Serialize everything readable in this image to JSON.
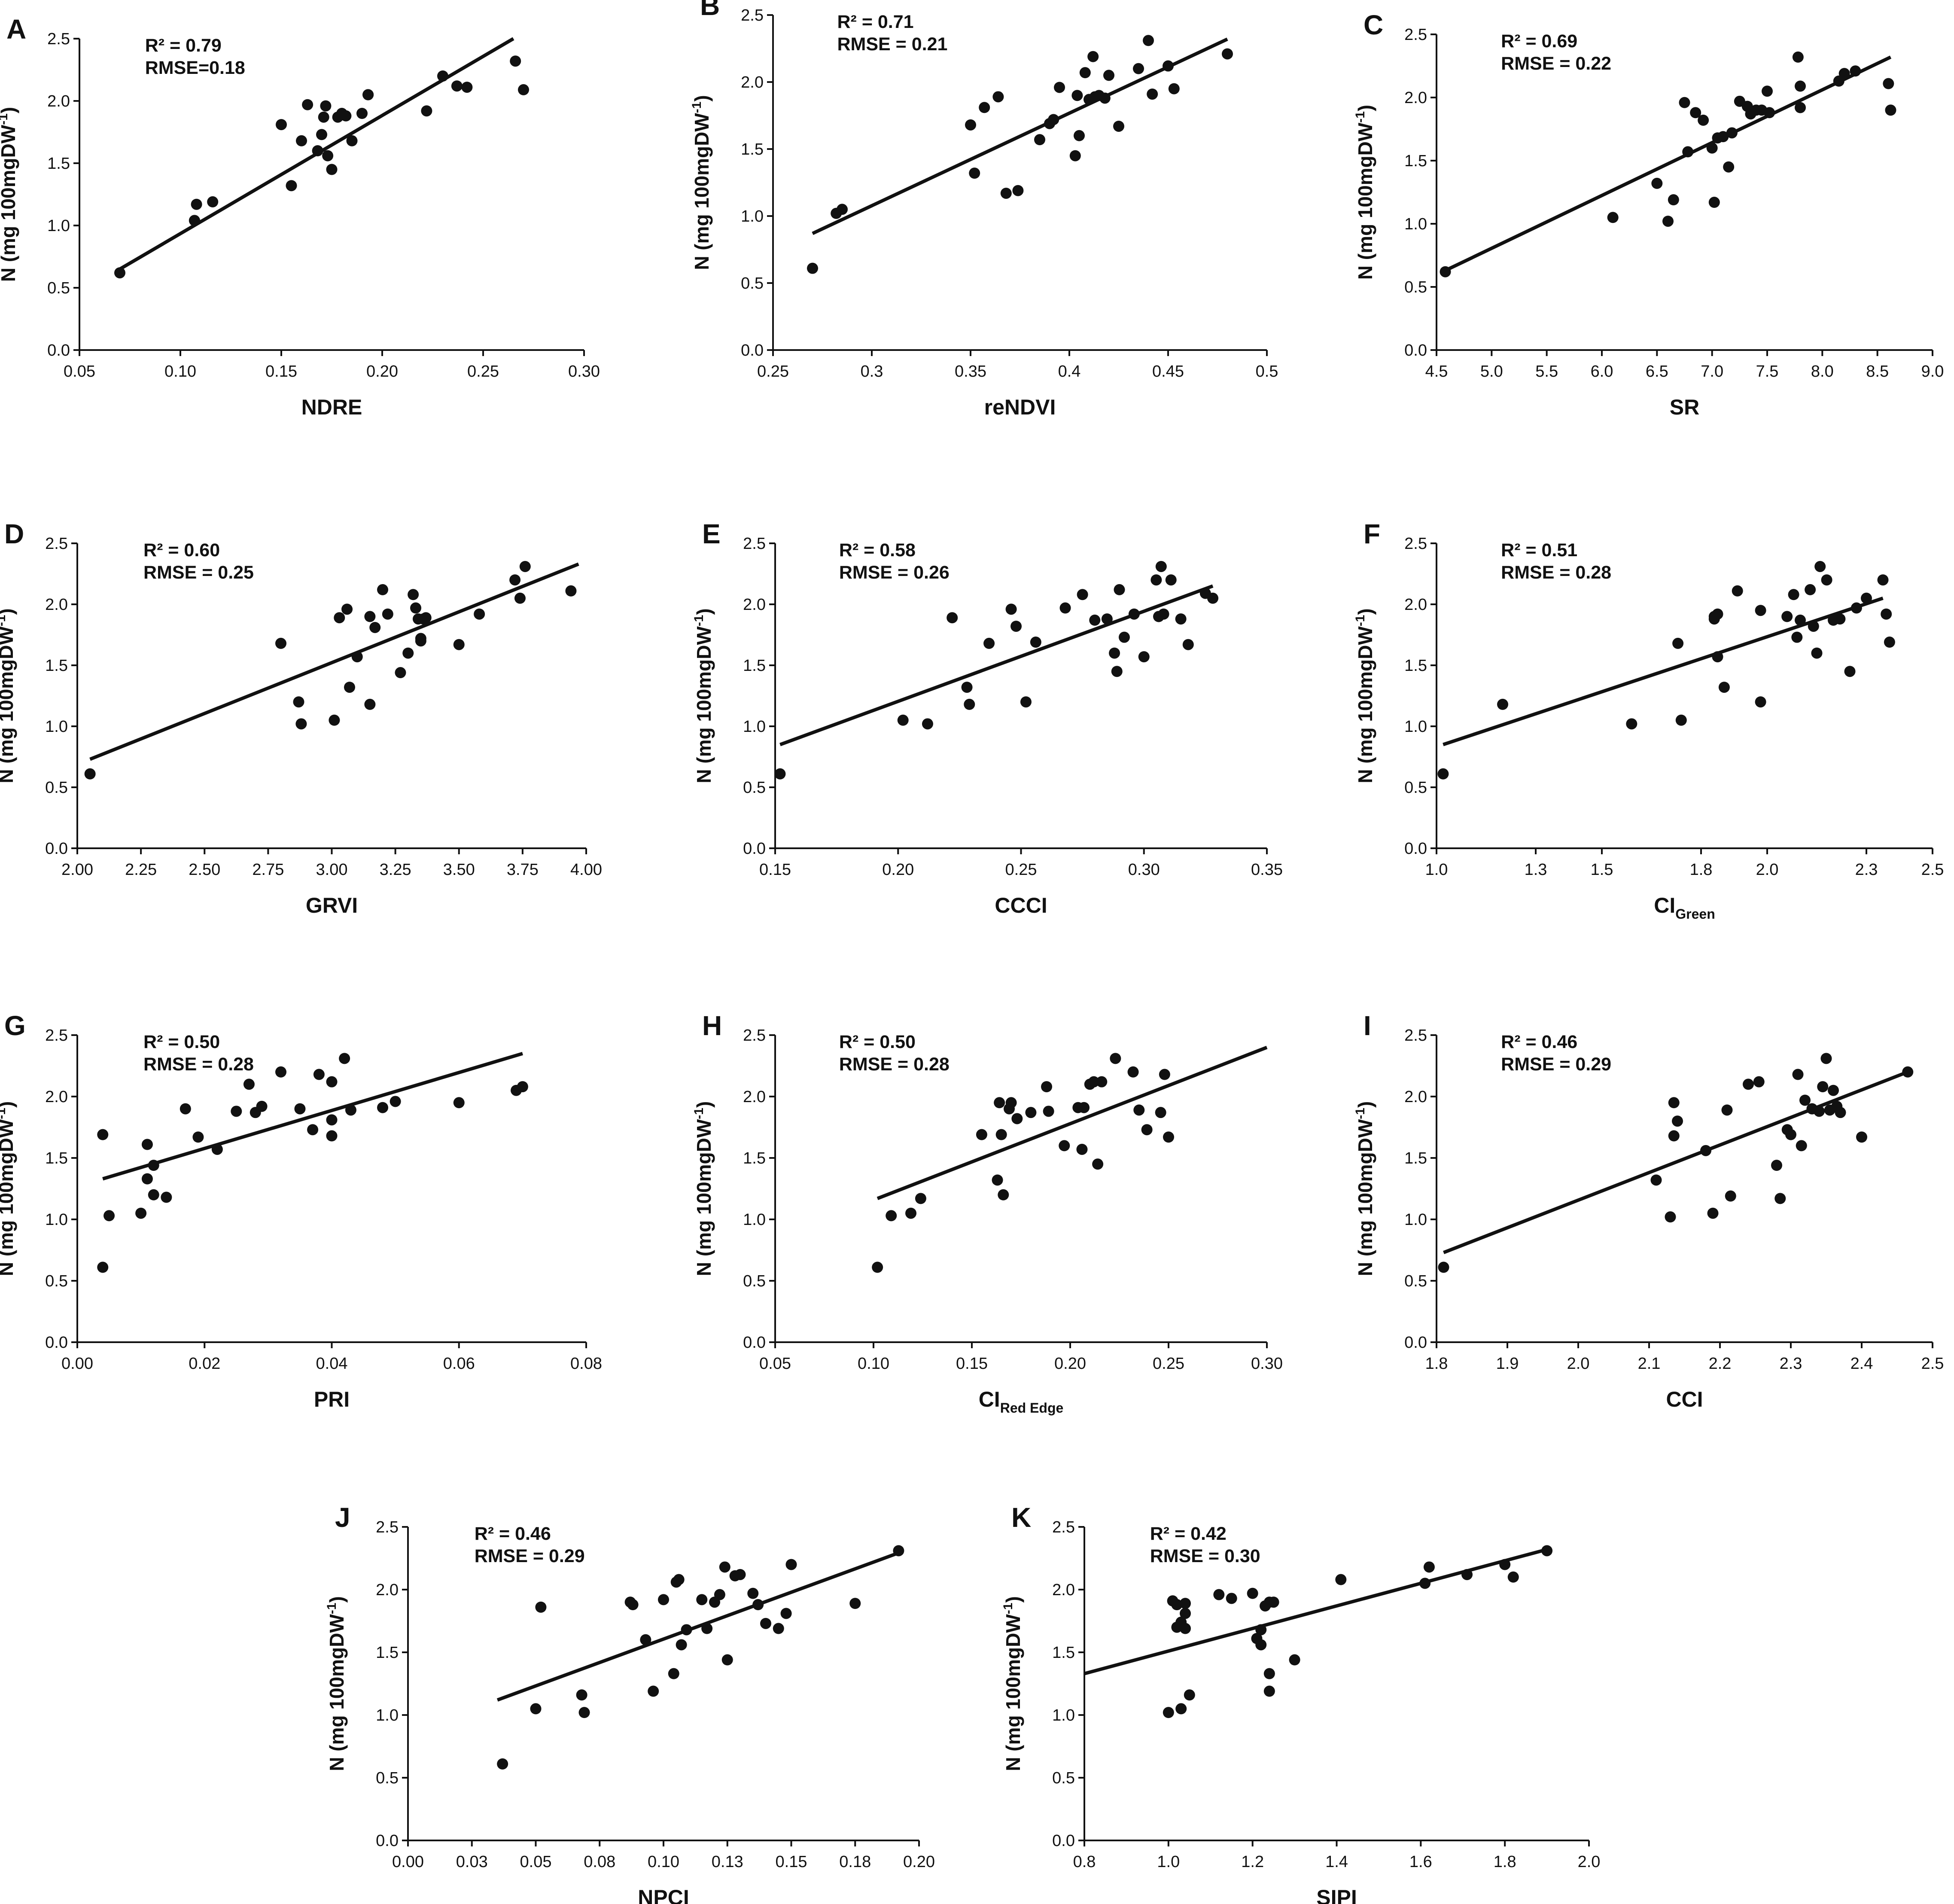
{
  "figure": {
    "y_label_main": "N (mg 100mgDW",
    "y_label_sup": "-1",
    "y_label_close": ")"
  },
  "chart_data": [
    {
      "panel": "A",
      "type": "scatter",
      "xlabel": "NDRE",
      "r2": "R² = 0.79",
      "rmse": "RMSE=0.18",
      "xlim": [
        0.05,
        0.3
      ],
      "xticks": [
        0.05,
        0.1,
        0.15,
        0.2,
        0.25,
        0.3
      ],
      "xtick_labels": [
        "0.05",
        "0.10",
        "0.15",
        "0.20",
        "0.25",
        "0.30"
      ],
      "ylim": [
        0,
        2.5
      ],
      "yticks": [
        0,
        0.5,
        1.0,
        1.5,
        2.0,
        2.5
      ],
      "ytick_labels": [
        "0.0",
        "0.5",
        "1.0",
        "1.5",
        "2.0",
        "2.5"
      ],
      "fit": [
        [
          0.07,
          0.65
        ],
        [
          0.265,
          2.5
        ]
      ],
      "x": [
        0.07,
        0.107,
        0.108,
        0.107,
        0.116,
        0.15,
        0.155,
        0.16,
        0.163,
        0.168,
        0.17,
        0.171,
        0.172,
        0.173,
        0.175,
        0.178,
        0.18,
        0.182,
        0.185,
        0.19,
        0.193,
        0.193,
        0.222,
        0.23,
        0.237,
        0.242,
        0.266,
        0.27
      ],
      "y": [
        0.62,
        1.04,
        1.17,
        1.04,
        1.19,
        1.81,
        1.32,
        1.68,
        1.97,
        1.6,
        1.73,
        1.87,
        1.96,
        1.56,
        1.45,
        1.87,
        1.9,
        1.88,
        1.68,
        1.9,
        2.05,
        2.05,
        1.92,
        2.2,
        2.12,
        2.11,
        2.32,
        2.09
      ]
    },
    {
      "panel": "B",
      "type": "scatter",
      "xlabel": "reNDVI",
      "r2": "R² = 0.71",
      "rmse": "RMSE = 0.21",
      "xlim": [
        0.25,
        0.5
      ],
      "xticks": [
        0.25,
        0.3,
        0.35,
        0.4,
        0.45,
        0.5
      ],
      "xtick_labels": [
        "0.25",
        "0.3",
        "0.35",
        "0.4",
        "0.45",
        "0.5"
      ],
      "ylim": [
        0,
        2.5
      ],
      "yticks": [
        0,
        0.5,
        1.0,
        1.5,
        2.0,
        2.5
      ],
      "ytick_labels": [
        "0.0",
        "0.5",
        "1.0",
        "1.5",
        "2.0",
        "2.5"
      ],
      "fit": [
        [
          0.27,
          0.87
        ],
        [
          0.48,
          2.32
        ]
      ],
      "x": [
        0.27,
        0.282,
        0.285,
        0.35,
        0.352,
        0.357,
        0.364,
        0.368,
        0.374,
        0.385,
        0.39,
        0.392,
        0.395,
        0.403,
        0.405,
        0.408,
        0.41,
        0.412,
        0.413,
        0.415,
        0.418,
        0.42,
        0.425,
        0.435,
        0.44,
        0.442,
        0.45,
        0.453,
        0.48,
        0.404
      ],
      "y": [
        0.61,
        1.02,
        1.05,
        1.68,
        1.32,
        1.81,
        1.89,
        1.17,
        1.19,
        1.57,
        1.69,
        1.72,
        1.96,
        1.45,
        1.6,
        2.07,
        1.87,
        2.19,
        1.89,
        1.9,
        1.88,
        2.05,
        1.67,
        2.1,
        2.31,
        1.91,
        2.12,
        1.95,
        2.21,
        1.9
      ]
    },
    {
      "panel": "C",
      "type": "scatter",
      "xlabel": "SR",
      "r2": "R² = 0.69",
      "rmse": "RMSE = 0.22",
      "xlim": [
        4.5,
        9.0
      ],
      "xticks": [
        4.5,
        5.0,
        5.5,
        6.0,
        6.5,
        7.0,
        7.5,
        8.0,
        8.5,
        9.0
      ],
      "xtick_labels": [
        "4.5",
        "5.0",
        "5.5",
        "6.0",
        "6.5",
        "7.0",
        "7.5",
        "8.0",
        "8.5",
        "9.0"
      ],
      "ylim": [
        0,
        2.5
      ],
      "yticks": [
        0,
        0.5,
        1.0,
        1.5,
        2.0,
        2.5
      ],
      "ytick_labels": [
        "0.0",
        "0.5",
        "1.0",
        "1.5",
        "2.0",
        "2.5"
      ],
      "fit": [
        [
          4.58,
          0.63
        ],
        [
          8.62,
          2.32
        ]
      ],
      "x": [
        4.58,
        6.1,
        6.5,
        6.6,
        6.65,
        6.75,
        6.78,
        6.85,
        6.92,
        7.0,
        7.02,
        7.05,
        7.1,
        7.15,
        7.18,
        7.25,
        7.32,
        7.35,
        7.45,
        7.5,
        7.52,
        7.78,
        7.8,
        7.8,
        8.15,
        8.2,
        8.3,
        8.6,
        8.62,
        7.4
      ],
      "y": [
        0.62,
        1.05,
        1.32,
        1.02,
        1.19,
        1.96,
        1.57,
        1.88,
        1.82,
        1.6,
        1.17,
        1.68,
        1.69,
        1.45,
        1.72,
        1.97,
        1.93,
        1.87,
        1.9,
        2.05,
        1.88,
        2.32,
        1.92,
        2.09,
        2.13,
        2.19,
        2.21,
        2.11,
        1.9,
        1.9
      ]
    },
    {
      "panel": "D",
      "type": "scatter",
      "xlabel": "GRVI",
      "r2": "R² = 0.60",
      "rmse": "RMSE = 0.25",
      "xlim": [
        2.0,
        4.0
      ],
      "xticks": [
        2.0,
        2.25,
        2.5,
        2.75,
        3.0,
        3.25,
        3.5,
        3.75,
        4.0
      ],
      "xtick_labels": [
        "2.00",
        "2.25",
        "2.50",
        "2.75",
        "3.00",
        "3.25",
        "3.50",
        "3.75",
        "4.00"
      ],
      "ylim": [
        0,
        2.5
      ],
      "yticks": [
        0,
        0.5,
        1.0,
        1.5,
        2.0,
        2.5
      ],
      "ytick_labels": [
        "0.0",
        "0.5",
        "1.0",
        "1.5",
        "2.0",
        "2.5"
      ],
      "fit": [
        [
          2.05,
          0.73
        ],
        [
          3.97,
          2.33
        ]
      ],
      "x": [
        2.05,
        2.8,
        2.87,
        2.88,
        3.01,
        3.03,
        3.06,
        3.07,
        3.1,
        3.15,
        3.15,
        3.17,
        3.2,
        3.22,
        3.27,
        3.3,
        3.32,
        3.33,
        3.35,
        3.35,
        3.37,
        3.5,
        3.58,
        3.72,
        3.74,
        3.76,
        3.94,
        3.34,
        3.36
      ],
      "y": [
        0.61,
        1.68,
        1.2,
        1.02,
        1.05,
        1.89,
        1.96,
        1.32,
        1.57,
        1.9,
        1.18,
        1.81,
        2.12,
        1.92,
        1.44,
        1.6,
        2.08,
        1.97,
        1.7,
        1.72,
        1.89,
        1.67,
        1.92,
        2.2,
        2.05,
        2.31,
        2.11,
        1.88,
        1.88
      ]
    },
    {
      "panel": "E",
      "type": "scatter",
      "xlabel": "CCCI",
      "r2": "R² = 0.58",
      "rmse": "RMSE = 0.26",
      "xlim": [
        0.15,
        0.35
      ],
      "xticks": [
        0.15,
        0.2,
        0.25,
        0.3,
        0.35
      ],
      "xtick_labels": [
        "0.15",
        "0.20",
        "0.25",
        "0.30",
        "0.35"
      ],
      "ylim": [
        0,
        2.5
      ],
      "yticks": [
        0,
        0.5,
        1.0,
        1.5,
        2.0,
        2.5
      ],
      "ytick_labels": [
        "0.0",
        "0.5",
        "1.0",
        "1.5",
        "2.0",
        "2.5"
      ],
      "fit": [
        [
          0.152,
          0.85
        ],
        [
          0.328,
          2.15
        ]
      ],
      "x": [
        0.152,
        0.202,
        0.212,
        0.222,
        0.228,
        0.229,
        0.237,
        0.246,
        0.248,
        0.252,
        0.256,
        0.268,
        0.275,
        0.28,
        0.285,
        0.288,
        0.289,
        0.29,
        0.292,
        0.296,
        0.3,
        0.305,
        0.306,
        0.307,
        0.308,
        0.311,
        0.315,
        0.318,
        0.325,
        0.328,
        0.306
      ],
      "y": [
        0.61,
        1.05,
        1.02,
        1.89,
        1.32,
        1.18,
        1.68,
        1.96,
        1.82,
        1.2,
        1.69,
        1.97,
        2.08,
        1.87,
        1.88,
        1.6,
        1.45,
        2.12,
        1.73,
        1.92,
        1.57,
        2.2,
        1.9,
        2.31,
        1.92,
        2.2,
        1.88,
        1.67,
        2.09,
        2.05,
        1.9
      ]
    },
    {
      "panel": "F",
      "type": "scatter",
      "xlabel": "CI",
      "xlabel_sub": "Green",
      "r2": "R² = 0.51",
      "rmse": "RMSE = 0.28",
      "xlim": [
        1.0,
        2.5
      ],
      "xticks": [
        1.0,
        1.3,
        1.5,
        1.8,
        2.0,
        2.3,
        2.5
      ],
      "xtick_labels": [
        "1.0",
        "1.3",
        "1.5",
        "1.8",
        "2.0",
        "2.3",
        "2.5"
      ],
      "ylim": [
        0,
        2.5
      ],
      "yticks": [
        0,
        0.5,
        1.0,
        1.5,
        2.0,
        2.5
      ],
      "ytick_labels": [
        "0.0",
        "0.5",
        "1.0",
        "1.5",
        "2.0",
        "2.5"
      ],
      "fit": [
        [
          1.02,
          0.85
        ],
        [
          2.35,
          2.05
        ]
      ],
      "x": [
        1.02,
        1.2,
        1.59,
        1.73,
        1.74,
        1.84,
        1.84,
        1.85,
        1.85,
        1.87,
        1.91,
        1.98,
        1.98,
        2.06,
        2.08,
        2.09,
        2.1,
        2.13,
        2.14,
        2.15,
        2.16,
        2.18,
        2.2,
        2.22,
        2.25,
        2.27,
        2.3,
        2.35,
        2.36,
        2.37
      ],
      "y": [
        0.61,
        1.18,
        1.02,
        1.68,
        1.05,
        1.9,
        1.88,
        1.57,
        1.92,
        1.32,
        2.11,
        1.2,
        1.95,
        1.9,
        2.08,
        1.73,
        1.87,
        2.12,
        1.82,
        1.6,
        2.31,
        2.2,
        1.87,
        1.88,
        1.45,
        1.97,
        2.05,
        2.2,
        1.92,
        1.69
      ]
    },
    {
      "panel": "G",
      "type": "scatter",
      "xlabel": "PRI",
      "r2": "R² = 0.50",
      "rmse": "RMSE = 0.28",
      "xlim": [
        0.0,
        0.08
      ],
      "xticks": [
        0,
        0.02,
        0.04,
        0.06,
        0.08
      ],
      "xtick_labels": [
        "0.00",
        "0.02",
        "0.04",
        "0.06",
        "0.08"
      ],
      "ylim": [
        0,
        2.5
      ],
      "yticks": [
        0,
        0.5,
        1.0,
        1.5,
        2.0,
        2.5
      ],
      "ytick_labels": [
        "0.0",
        "0.5",
        "1.0",
        "1.5",
        "2.0",
        "2.5"
      ],
      "fit": [
        [
          0.004,
          1.33
        ],
        [
          0.07,
          2.35
        ]
      ],
      "x": [
        0.004,
        0.004,
        0.005,
        0.01,
        0.011,
        0.011,
        0.012,
        0.012,
        0.014,
        0.017,
        0.019,
        0.022,
        0.025,
        0.027,
        0.028,
        0.029,
        0.032,
        0.035,
        0.037,
        0.038,
        0.04,
        0.04,
        0.04,
        0.042,
        0.043,
        0.048,
        0.05,
        0.06,
        0.069,
        0.07
      ],
      "y": [
        0.61,
        1.69,
        1.03,
        1.05,
        1.33,
        1.61,
        1.44,
        1.2,
        1.18,
        1.9,
        1.67,
        1.57,
        1.88,
        2.1,
        1.87,
        1.92,
        2.2,
        1.9,
        1.73,
        2.18,
        1.68,
        1.81,
        2.12,
        2.31,
        1.89,
        1.91,
        1.96,
        1.95,
        2.05,
        2.08
      ]
    },
    {
      "panel": "H",
      "type": "scatter",
      "xlabel": "CI",
      "xlabel_sub": "Red Edge",
      "r2": "R² = 0.50",
      "rmse": "RMSE = 0.28",
      "xlim": [
        0.05,
        0.3
      ],
      "xticks": [
        0.05,
        0.1,
        0.15,
        0.2,
        0.25,
        0.3
      ],
      "xtick_labels": [
        "0.05",
        "0.10",
        "0.15",
        "0.20",
        "0.25",
        "0.30"
      ],
      "ylim": [
        0,
        2.5
      ],
      "yticks": [
        0,
        0.5,
        1.0,
        1.5,
        2.0,
        2.5
      ],
      "ytick_labels": [
        "0.0",
        "0.5",
        "1.0",
        "1.5",
        "2.0",
        "2.5"
      ],
      "fit": [
        [
          0.102,
          1.17
        ],
        [
          0.3,
          2.4
        ]
      ],
      "x": [
        0.102,
        0.109,
        0.119,
        0.124,
        0.155,
        0.163,
        0.164,
        0.165,
        0.166,
        0.169,
        0.17,
        0.173,
        0.18,
        0.188,
        0.189,
        0.197,
        0.204,
        0.206,
        0.207,
        0.21,
        0.212,
        0.214,
        0.216,
        0.223,
        0.232,
        0.235,
        0.239,
        0.246,
        0.248,
        0.25
      ],
      "y": [
        0.61,
        1.03,
        1.05,
        1.17,
        1.69,
        1.32,
        1.95,
        1.69,
        1.2,
        1.9,
        1.95,
        1.82,
        1.87,
        2.08,
        1.88,
        1.6,
        1.91,
        1.57,
        1.91,
        2.1,
        2.12,
        1.45,
        2.12,
        2.31,
        2.2,
        1.89,
        1.73,
        1.87,
        2.18,
        1.67
      ]
    },
    {
      "panel": "I",
      "type": "scatter",
      "xlabel": "CCI",
      "r2": "R² = 0.46",
      "rmse": "RMSE = 0.29",
      "xlim": [
        1.8,
        2.5
      ],
      "xticks": [
        1.8,
        1.9,
        2.0,
        2.1,
        2.2,
        2.3,
        2.4,
        2.5
      ],
      "xtick_labels": [
        "1.8",
        "1.9",
        "2.0",
        "2.1",
        "2.2",
        "2.3",
        "2.4",
        "2.5"
      ],
      "ylim": [
        0,
        2.5
      ],
      "yticks": [
        0,
        0.5,
        1.0,
        1.5,
        2.0,
        2.5
      ],
      "ytick_labels": [
        "0.0",
        "0.5",
        "1.0",
        "1.5",
        "2.0",
        "2.5"
      ],
      "fit": [
        [
          1.81,
          0.73
        ],
        [
          2.465,
          2.2
        ]
      ],
      "x": [
        1.81,
        2.11,
        2.13,
        2.135,
        2.135,
        2.14,
        2.18,
        2.19,
        2.21,
        2.215,
        2.24,
        2.255,
        2.28,
        2.285,
        2.295,
        2.3,
        2.31,
        2.315,
        2.32,
        2.33,
        2.34,
        2.345,
        2.35,
        2.355,
        2.36,
        2.365,
        2.37,
        2.4,
        2.465,
        2.33
      ],
      "y": [
        0.61,
        1.32,
        1.02,
        1.68,
        1.95,
        1.8,
        1.56,
        1.05,
        1.89,
        1.19,
        2.1,
        2.12,
        1.44,
        1.17,
        1.73,
        1.69,
        2.18,
        1.6,
        1.97,
        1.9,
        1.88,
        2.08,
        2.31,
        1.89,
        2.05,
        1.92,
        1.87,
        1.67,
        2.2,
        1.9
      ]
    },
    {
      "panel": "J",
      "type": "scatter",
      "xlabel": "NPCI",
      "r2": "R² = 0.46",
      "rmse": "RMSE = 0.29",
      "xlim": [
        0.0,
        0.2
      ],
      "xticks": [
        0,
        0.025,
        0.05,
        0.075,
        0.1,
        0.125,
        0.15,
        0.175,
        0.2
      ],
      "xtick_labels": [
        "0.00",
        "0.03",
        "0.05",
        "0.08",
        "0.10",
        "0.13",
        "0.15",
        "0.18",
        "0.20"
      ],
      "ylim": [
        0,
        2.5
      ],
      "yticks": [
        0,
        0.5,
        1.0,
        1.5,
        2.0,
        2.5
      ],
      "ytick_labels": [
        "0.0",
        "0.5",
        "1.0",
        "1.5",
        "2.0",
        "2.5"
      ],
      "fit": [
        [
          0.035,
          1.12
        ],
        [
          0.193,
          2.3
        ]
      ],
      "x": [
        0.037,
        0.05,
        0.052,
        0.068,
        0.069,
        0.087,
        0.088,
        0.093,
        0.096,
        0.1,
        0.104,
        0.105,
        0.106,
        0.107,
        0.109,
        0.115,
        0.117,
        0.122,
        0.124,
        0.125,
        0.128,
        0.13,
        0.135,
        0.137,
        0.14,
        0.145,
        0.148,
        0.15,
        0.175,
        0.192,
        0.12
      ],
      "y": [
        0.61,
        1.05,
        1.86,
        1.16,
        1.02,
        1.9,
        1.88,
        1.6,
        1.19,
        1.92,
        1.33,
        2.06,
        2.08,
        1.56,
        1.68,
        1.92,
        1.69,
        1.96,
        2.18,
        1.44,
        2.11,
        2.12,
        1.97,
        1.88,
        1.73,
        1.69,
        1.81,
        2.2,
        1.89,
        2.31,
        1.9
      ]
    },
    {
      "panel": "K",
      "type": "scatter",
      "xlabel": "SIPI",
      "r2": "R² = 0.42",
      "rmse": "RMSE = 0.30",
      "xlim": [
        0.8,
        2.0
      ],
      "xticks": [
        0.8,
        1.0,
        1.2,
        1.4,
        1.6,
        1.8,
        2.0
      ],
      "xtick_labels": [
        "0.8",
        "1.0",
        "1.2",
        "1.4",
        "1.6",
        "1.8",
        "2.0"
      ],
      "ylim": [
        0,
        2.5
      ],
      "yticks": [
        0,
        0.5,
        1.0,
        1.5,
        2.0,
        2.5
      ],
      "ytick_labels": [
        "0.0",
        "0.5",
        "1.0",
        "1.5",
        "2.0",
        "2.5"
      ],
      "fit": [
        [
          0.8,
          1.33
        ],
        [
          1.9,
          2.32
        ]
      ],
      "x": [
        1.0,
        1.01,
        1.02,
        1.02,
        1.02,
        1.03,
        1.03,
        1.04,
        1.04,
        1.04,
        1.05,
        1.12,
        1.15,
        1.2,
        1.21,
        1.22,
        1.22,
        1.23,
        1.24,
        1.24,
        1.24,
        1.3,
        1.41,
        1.61,
        1.62,
        1.71,
        1.8,
        1.82,
        1.9,
        1.25
      ],
      "y": [
        1.02,
        1.91,
        1.88,
        1.7,
        1.88,
        1.05,
        1.74,
        1.69,
        1.81,
        1.89,
        1.16,
        1.96,
        1.93,
        1.97,
        1.61,
        1.56,
        1.68,
        1.87,
        1.33,
        1.19,
        1.9,
        1.44,
        2.08,
        2.05,
        2.18,
        2.12,
        2.2,
        2.1,
        2.31,
        1.9
      ]
    }
  ]
}
